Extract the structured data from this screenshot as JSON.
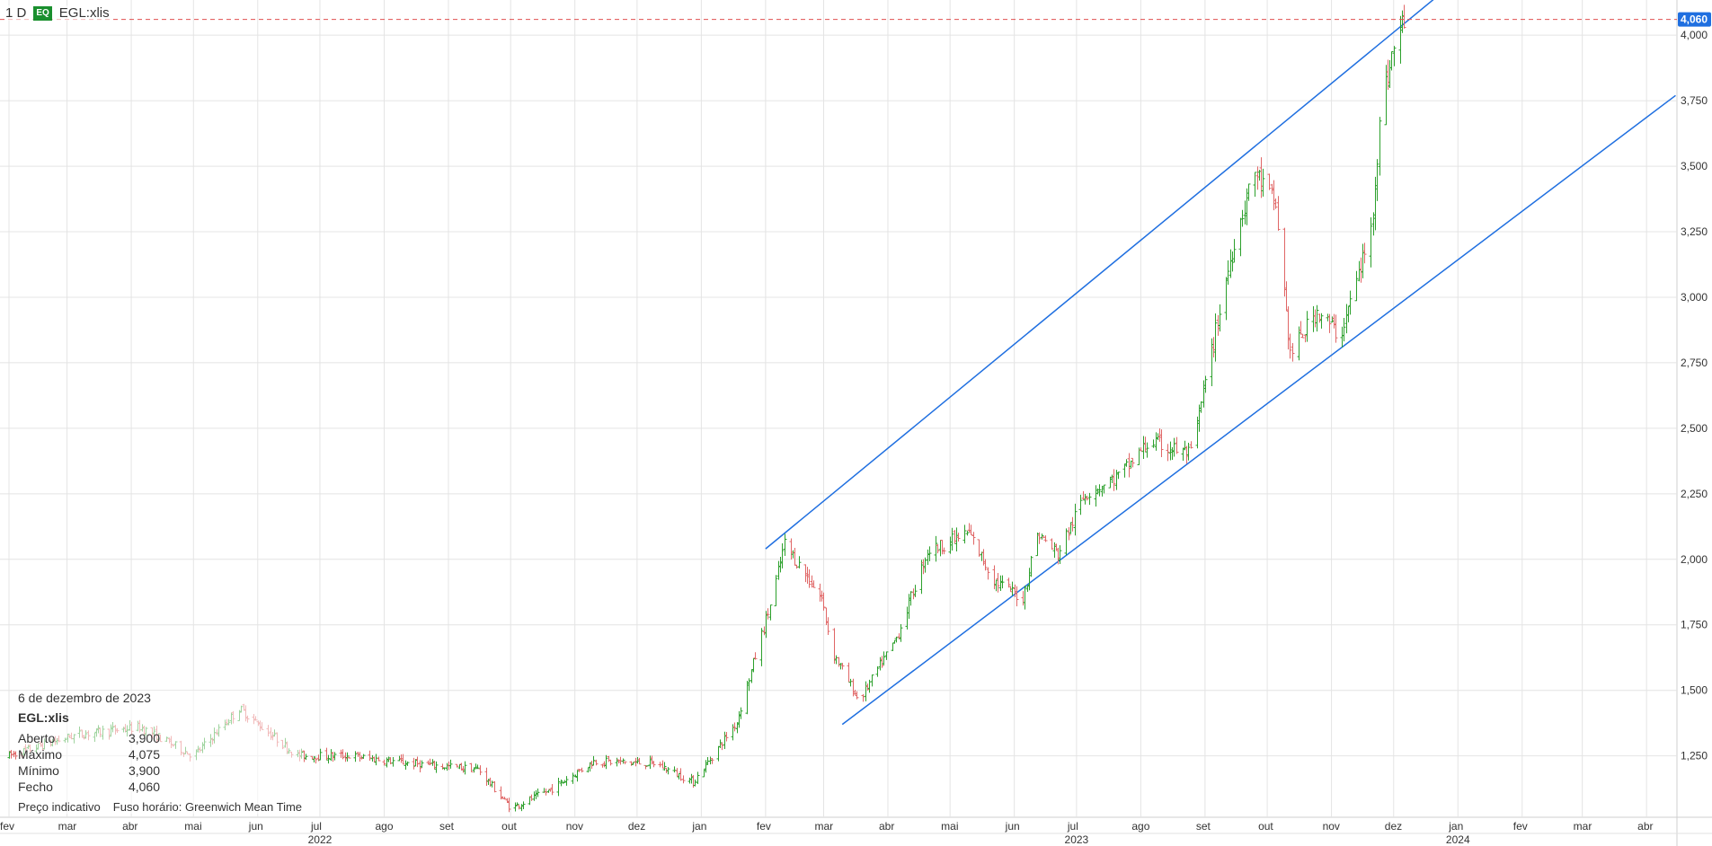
{
  "header": {
    "interval": "1 D",
    "badge": "EQ",
    "symbol": "EGL:xlis"
  },
  "info_panel": {
    "date": "6 de dezembro de 2023",
    "symbol": "EGL:xlis",
    "rows": [
      {
        "label": "Aberto",
        "value": "3,900"
      },
      {
        "label": "Máximo",
        "value": "4,075"
      },
      {
        "label": "Mínimo",
        "value": "3,900"
      },
      {
        "label": "Fecho",
        "value": "4,060"
      }
    ],
    "footer_left": "Preço indicativo",
    "footer_right": "Fuso horário: Greenwich Mean Time"
  },
  "colors": {
    "up": "#2ca02c",
    "down": "#e06666",
    "channel": "#1f6fe0",
    "last_price_line": "#e05050",
    "last_price_badge": "#1f6fe0",
    "grid": "#e4e4e4",
    "axis_text": "#333333"
  },
  "chart_data": {
    "type": "candlestick",
    "title": "",
    "xlabel": "",
    "ylabel": "",
    "y_axis_side": "right",
    "ylim": [
      1.05,
      4.1
    ],
    "y_ticks": [
      1.25,
      1.5,
      1.75,
      2.0,
      2.25,
      2.5,
      2.75,
      3.0,
      3.25,
      3.5,
      3.75,
      4.0
    ],
    "y_tick_labels": [
      "1,250",
      "1,500",
      "1,750",
      "2,000",
      "2,250",
      "2,500",
      "2,750",
      "3,000",
      "3,250",
      "3,500",
      "3,750",
      "4,000"
    ],
    "x_range": [
      "2022-02-01",
      "2024-04-20"
    ],
    "x_month_labels": [
      {
        "date": "2022-02-01",
        "label": "fev"
      },
      {
        "date": "2022-03-01",
        "label": "mar"
      },
      {
        "date": "2022-04-01",
        "label": "abr"
      },
      {
        "date": "2022-05-01",
        "label": "mai"
      },
      {
        "date": "2022-06-01",
        "label": "jun"
      },
      {
        "date": "2022-07-01",
        "label": "jul"
      },
      {
        "date": "2022-08-01",
        "label": "ago"
      },
      {
        "date": "2022-09-01",
        "label": "set"
      },
      {
        "date": "2022-10-01",
        "label": "out"
      },
      {
        "date": "2022-11-01",
        "label": "nov"
      },
      {
        "date": "2022-12-01",
        "label": "dez"
      },
      {
        "date": "2023-01-01",
        "label": "jan"
      },
      {
        "date": "2023-02-01",
        "label": "fev"
      },
      {
        "date": "2023-03-01",
        "label": "mar"
      },
      {
        "date": "2023-04-01",
        "label": "abr"
      },
      {
        "date": "2023-05-01",
        "label": "mai"
      },
      {
        "date": "2023-06-01",
        "label": "jun"
      },
      {
        "date": "2023-07-01",
        "label": "jul"
      },
      {
        "date": "2023-08-01",
        "label": "ago"
      },
      {
        "date": "2023-09-01",
        "label": "set"
      },
      {
        "date": "2023-10-01",
        "label": "out"
      },
      {
        "date": "2023-11-01",
        "label": "nov"
      },
      {
        "date": "2023-12-01",
        "label": "dez"
      },
      {
        "date": "2024-01-01",
        "label": "jan"
      },
      {
        "date": "2024-02-01",
        "label": "fev"
      },
      {
        "date": "2024-03-01",
        "label": "mar"
      },
      {
        "date": "2024-04-01",
        "label": "abr"
      }
    ],
    "x_year_labels": [
      {
        "date": "2022-07-01",
        "label": "2022"
      },
      {
        "date": "2023-07-01",
        "label": "2023"
      },
      {
        "date": "2024-01-01",
        "label": "2024"
      }
    ],
    "last_price": 4.06,
    "last_price_label": "4,060",
    "price_anchors": [
      [
        "2022-02-01",
        1.25
      ],
      [
        "2022-03-05",
        1.33
      ],
      [
        "2022-04-05",
        1.36
      ],
      [
        "2022-05-01",
        1.25
      ],
      [
        "2022-05-23",
        1.43
      ],
      [
        "2022-06-20",
        1.25
      ],
      [
        "2022-07-15",
        1.25
      ],
      [
        "2022-08-15",
        1.22
      ],
      [
        "2022-09-15",
        1.2
      ],
      [
        "2022-10-01",
        1.05
      ],
      [
        "2022-10-20",
        1.12
      ],
      [
        "2022-11-10",
        1.23
      ],
      [
        "2022-12-10",
        1.22
      ],
      [
        "2022-12-28",
        1.15
      ],
      [
        "2023-01-18",
        1.38
      ],
      [
        "2023-02-05",
        1.88
      ],
      [
        "2023-02-10",
        2.06
      ],
      [
        "2023-02-28",
        1.85
      ],
      [
        "2023-03-05",
        1.65
      ],
      [
        "2023-03-18",
        1.46
      ],
      [
        "2023-04-05",
        1.7
      ],
      [
        "2023-04-20",
        2.03
      ],
      [
        "2023-05-10",
        2.1
      ],
      [
        "2023-05-22",
        1.92
      ],
      [
        "2023-06-05",
        1.85
      ],
      [
        "2023-06-12",
        2.1
      ],
      [
        "2023-06-22",
        2.02
      ],
      [
        "2023-07-05",
        2.25
      ],
      [
        "2023-07-22",
        2.32
      ],
      [
        "2023-08-05",
        2.45
      ],
      [
        "2023-08-25",
        2.4
      ],
      [
        "2023-09-15",
        3.22
      ],
      [
        "2023-09-25",
        3.48
      ],
      [
        "2023-10-05",
        3.35
      ],
      [
        "2023-10-12",
        2.78
      ],
      [
        "2023-10-25",
        2.95
      ],
      [
        "2023-11-05",
        2.85
      ],
      [
        "2023-11-20",
        3.25
      ],
      [
        "2023-11-25",
        3.75
      ],
      [
        "2023-12-01",
        3.95
      ],
      [
        "2023-12-06",
        4.06
      ]
    ],
    "channel_lines": [
      {
        "name": "upper",
        "points": [
          [
            "2023-02-01",
            2.04
          ],
          [
            "2023-12-30",
            4.2
          ]
        ]
      },
      {
        "name": "lower",
        "points": [
          [
            "2023-03-10",
            1.37
          ],
          [
            "2024-04-15",
            3.77
          ]
        ]
      }
    ]
  }
}
